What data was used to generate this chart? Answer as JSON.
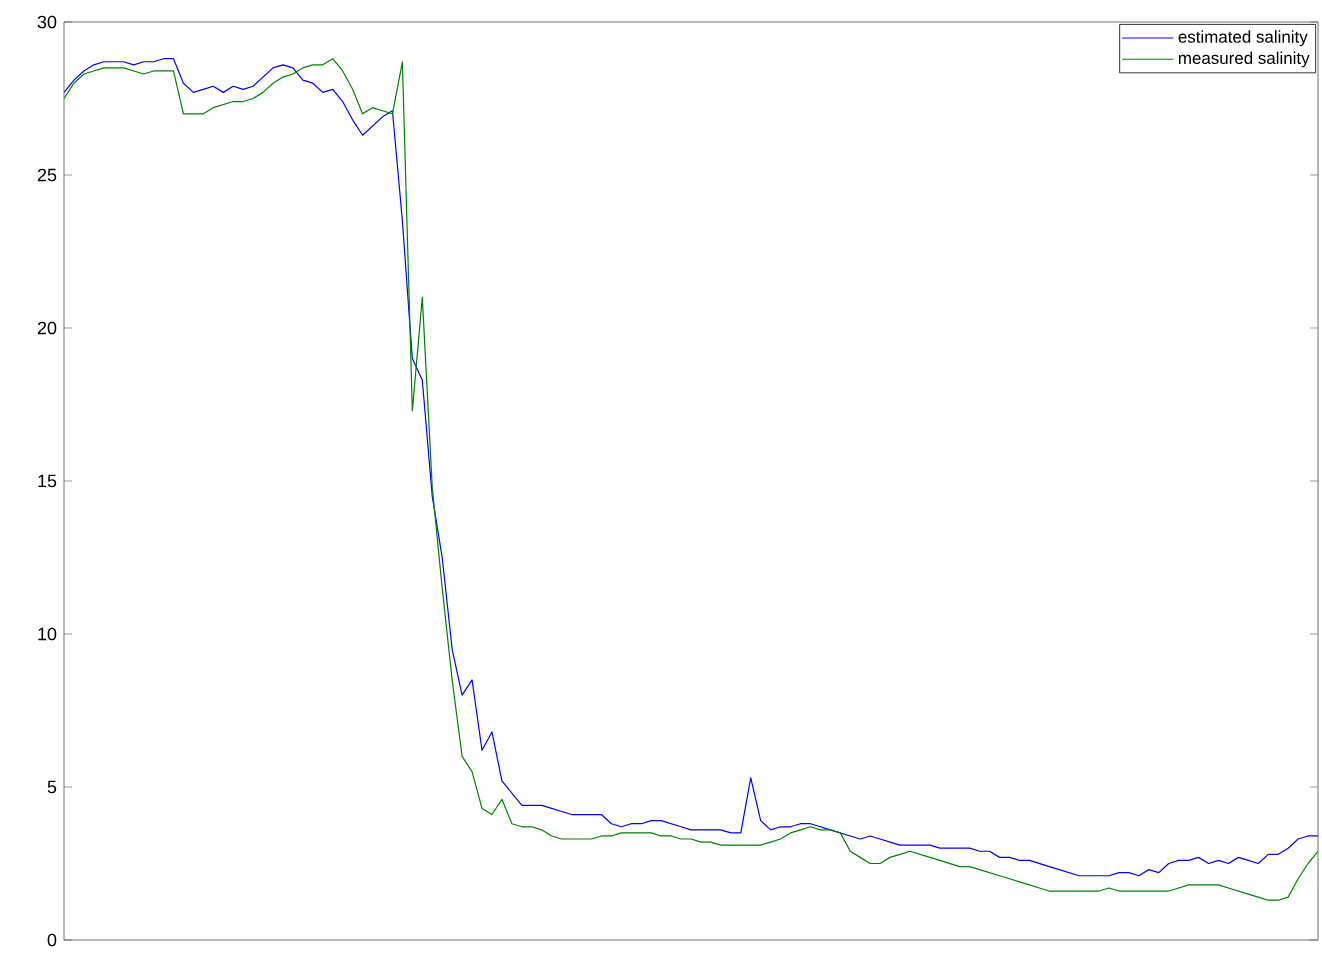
{
  "chart_data": {
    "type": "line",
    "categories": [
      null,
      null,
      null,
      null,
      null,
      null,
      null,
      null,
      null,
      null,
      null,
      null,
      null,
      null,
      null,
      null,
      null,
      null,
      null,
      null,
      null,
      null,
      null,
      null,
      null,
      null,
      null,
      null,
      null,
      null,
      null,
      null,
      null,
      null,
      null,
      null,
      null,
      null,
      null,
      null,
      null,
      null,
      null,
      null,
      null,
      null,
      null,
      null,
      null,
      null,
      null,
      null,
      null,
      null,
      null,
      null,
      null,
      null,
      null,
      null,
      null,
      null,
      null,
      null,
      null,
      null,
      null,
      null,
      null,
      null,
      null,
      null,
      null,
      null,
      null,
      null,
      null,
      null,
      null,
      null,
      null,
      null,
      null,
      null,
      null,
      null,
      null,
      null,
      null,
      null,
      null,
      null,
      null,
      null,
      null,
      null,
      null,
      null,
      null,
      null,
      null,
      null,
      null,
      null,
      null,
      null,
      null,
      null,
      null,
      null,
      null,
      null,
      null,
      null,
      null,
      null,
      null,
      null,
      null,
      null,
      null,
      null,
      null,
      null,
      null,
      null,
      null
    ],
    "series": [
      {
        "name": "estimated salinity",
        "color": "#0000ff",
        "values": [
          27.7,
          28.1,
          28.4,
          28.6,
          28.7,
          28.7,
          28.7,
          28.6,
          28.7,
          28.7,
          28.8,
          28.8,
          28.0,
          27.7,
          27.8,
          27.9,
          27.7,
          27.9,
          27.8,
          27.9,
          28.2,
          28.5,
          28.6,
          28.5,
          28.1,
          28.0,
          27.7,
          27.8,
          27.4,
          26.8,
          26.3,
          26.6,
          26.9,
          27.1,
          23.5,
          19.0,
          18.3,
          14.5,
          12.5,
          9.5,
          8.0,
          8.5,
          6.2,
          6.8,
          5.2,
          4.8,
          4.4,
          4.4,
          4.4,
          4.3,
          4.2,
          4.1,
          4.1,
          4.1,
          4.1,
          3.8,
          3.7,
          3.8,
          3.8,
          3.9,
          3.9,
          3.8,
          3.7,
          3.6,
          3.6,
          3.6,
          3.6,
          3.5,
          3.5,
          5.3,
          3.9,
          3.6,
          3.7,
          3.7,
          3.8,
          3.8,
          3.7,
          3.6,
          3.5,
          3.4,
          3.3,
          3.4,
          3.3,
          3.2,
          3.1,
          3.1,
          3.1,
          3.1,
          3.0,
          3.0,
          3.0,
          3.0,
          2.9,
          2.9,
          2.7,
          2.7,
          2.6,
          2.6,
          2.5,
          2.4,
          2.3,
          2.2,
          2.1,
          2.1,
          2.1,
          2.1,
          2.2,
          2.2,
          2.1,
          2.3,
          2.2,
          2.5,
          2.6,
          2.6,
          2.7,
          2.5,
          2.6,
          2.5,
          2.7,
          2.6,
          2.5,
          2.8,
          2.8,
          3.0,
          3.3,
          3.4,
          3.4
        ]
      },
      {
        "name": "measured salinity",
        "color": "#008000",
        "values": [
          27.5,
          28.0,
          28.3,
          28.4,
          28.5,
          28.5,
          28.5,
          28.4,
          28.3,
          28.4,
          28.4,
          28.4,
          27.0,
          27.0,
          27.0,
          27.2,
          27.3,
          27.4,
          27.4,
          27.5,
          27.7,
          28.0,
          28.2,
          28.3,
          28.5,
          28.6,
          28.6,
          28.8,
          28.4,
          27.8,
          27.0,
          27.2,
          27.1,
          27.0,
          28.7,
          17.3,
          21.0,
          14.8,
          11.5,
          8.5,
          6.0,
          5.5,
          4.3,
          4.1,
          4.6,
          3.8,
          3.7,
          3.7,
          3.6,
          3.4,
          3.3,
          3.3,
          3.3,
          3.3,
          3.4,
          3.4,
          3.5,
          3.5,
          3.5,
          3.5,
          3.4,
          3.4,
          3.3,
          3.3,
          3.2,
          3.2,
          3.1,
          3.1,
          3.1,
          3.1,
          3.1,
          3.2,
          3.3,
          3.5,
          3.6,
          3.7,
          3.6,
          3.6,
          3.5,
          2.9,
          2.7,
          2.5,
          2.5,
          2.7,
          2.8,
          2.9,
          2.8,
          2.7,
          2.6,
          2.5,
          2.4,
          2.4,
          2.3,
          2.2,
          2.1,
          2.0,
          1.9,
          1.8,
          1.7,
          1.6,
          1.6,
          1.6,
          1.6,
          1.6,
          1.6,
          1.7,
          1.6,
          1.6,
          1.6,
          1.6,
          1.6,
          1.6,
          1.7,
          1.8,
          1.8,
          1.8,
          1.8,
          1.7,
          1.6,
          1.5,
          1.4,
          1.3,
          1.3,
          1.4,
          2.0,
          2.5,
          2.9
        ]
      }
    ],
    "ylim": [
      0,
      30
    ],
    "yticks": [
      0,
      5,
      10,
      15,
      20,
      25,
      30
    ],
    "legend": "top right",
    "grid": false,
    "marker": "none",
    "line_style": "solid"
  }
}
